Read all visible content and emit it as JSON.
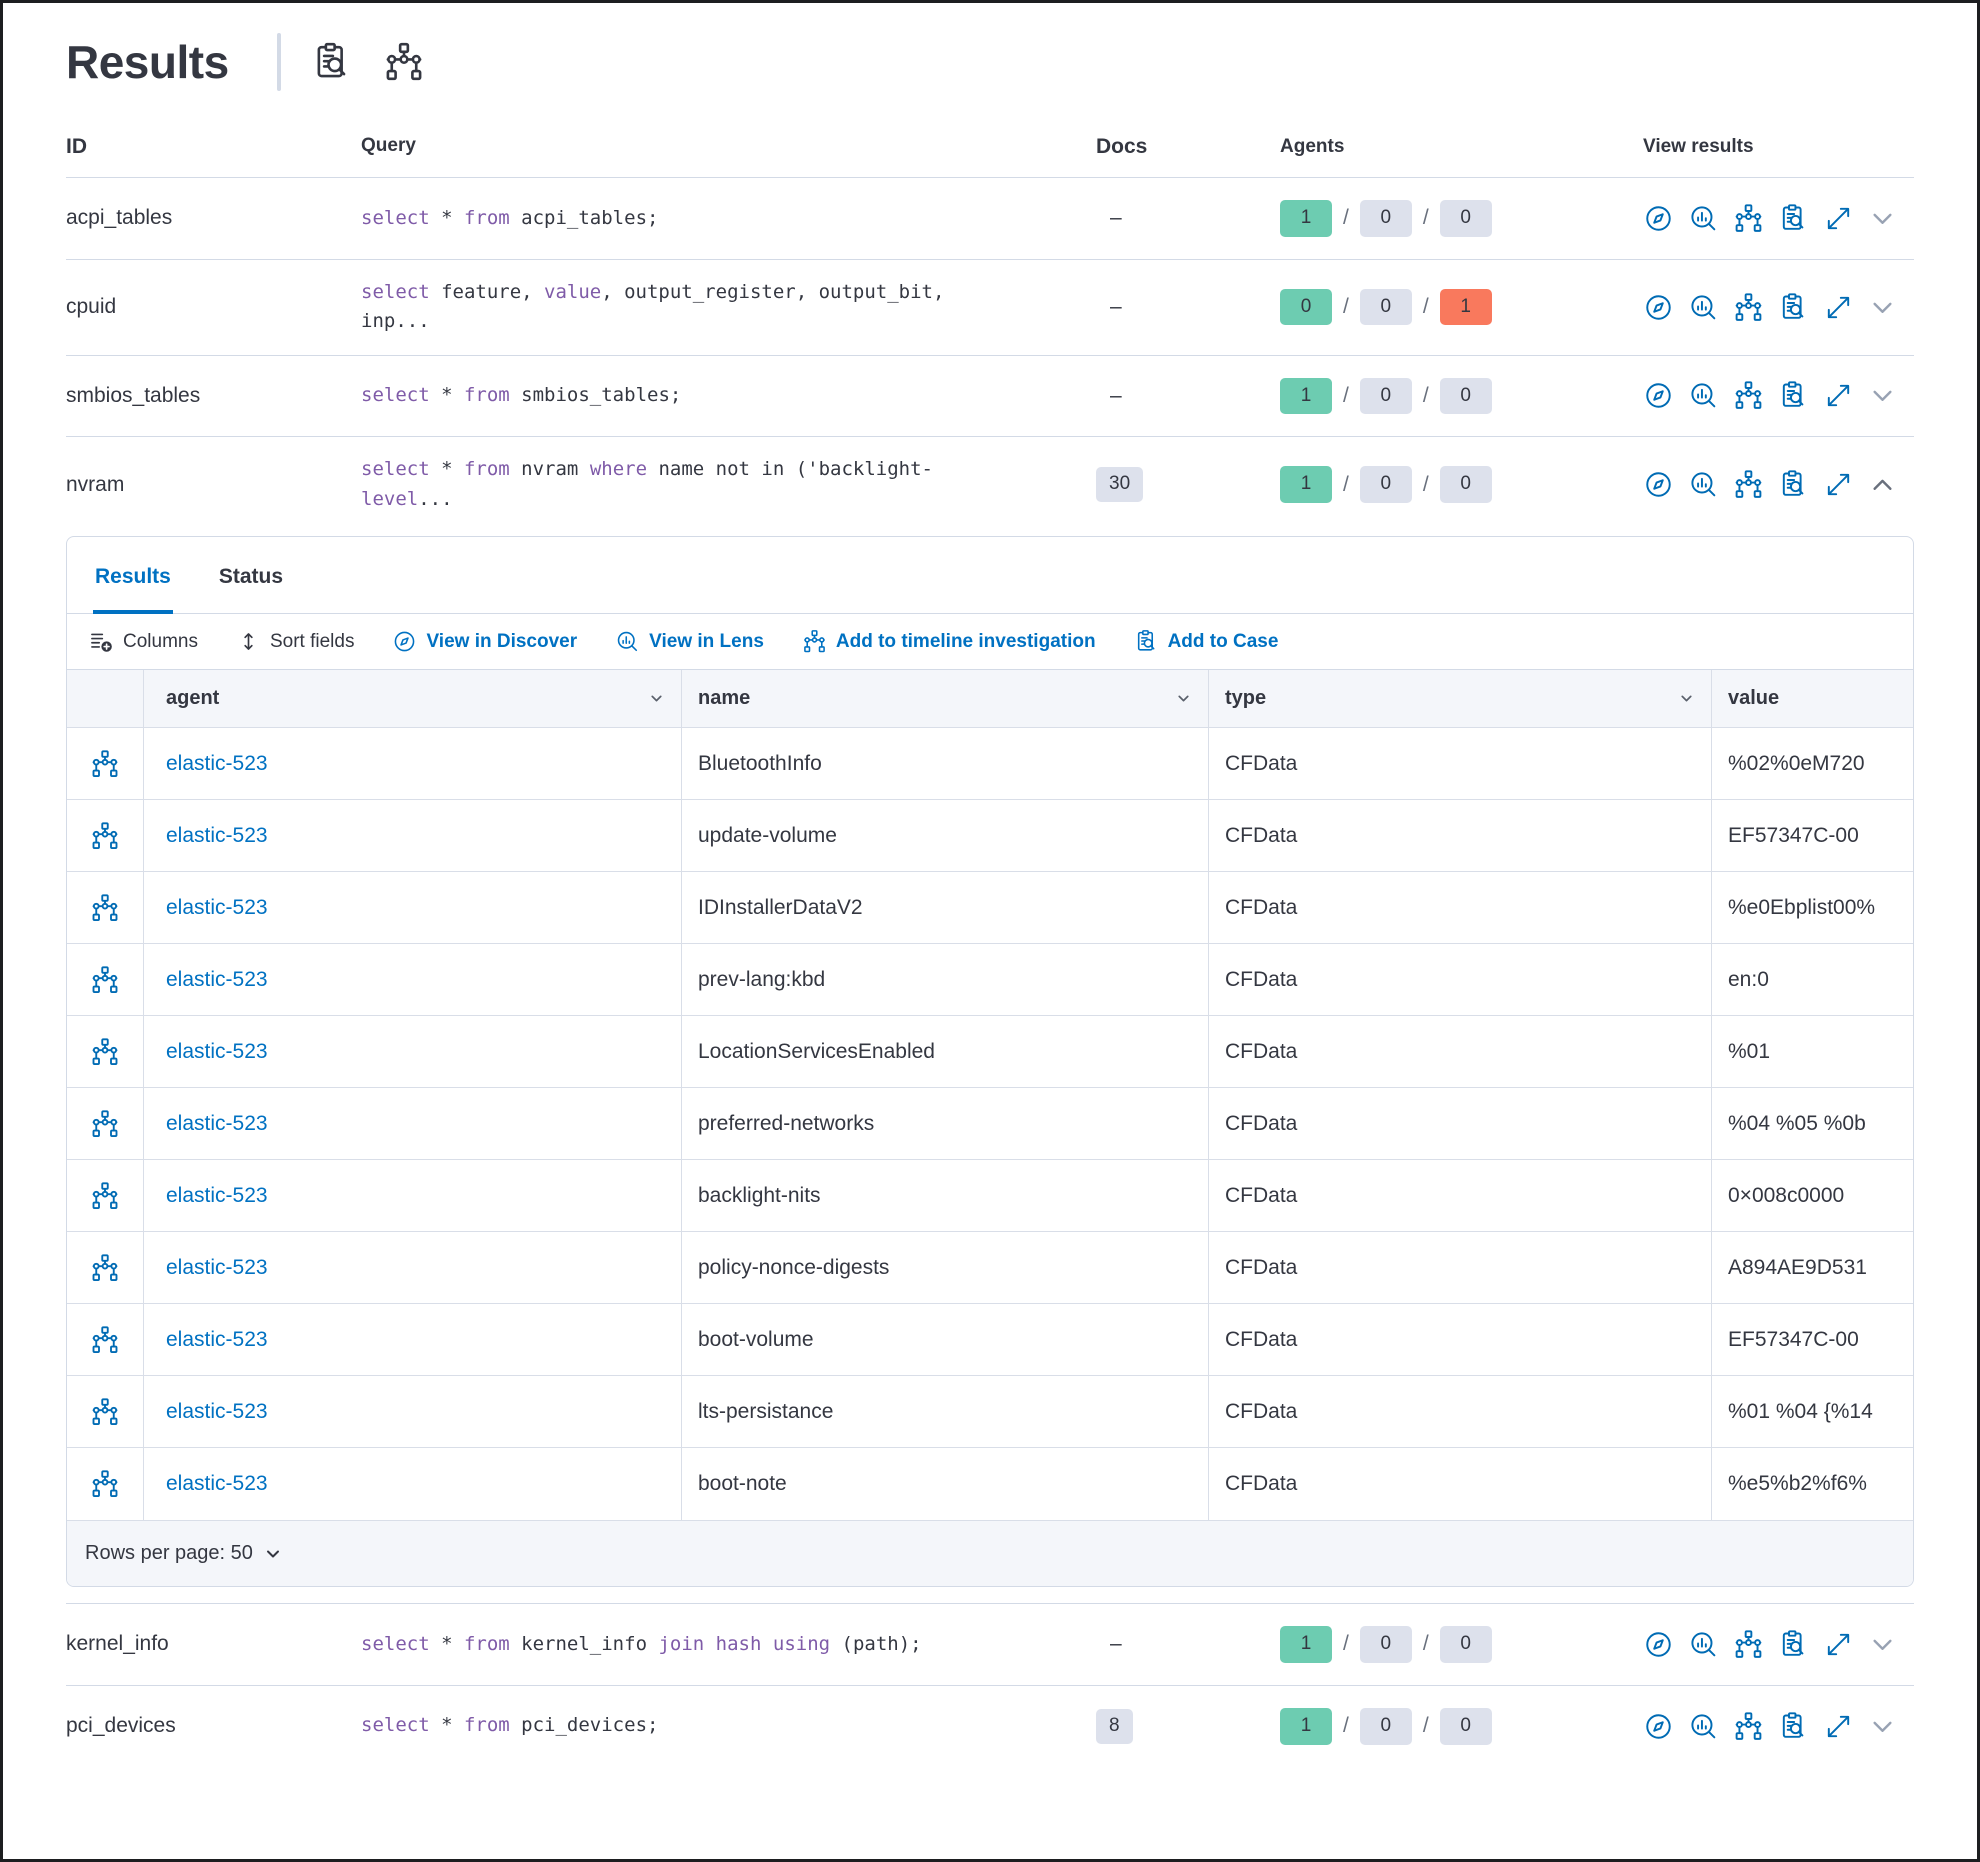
{
  "colors": {
    "primary_blue": "#0071c2",
    "icon_blue": "#006bb4",
    "keyword_purple": "#7f5ba8",
    "badge_green": "#6dccb1",
    "badge_gray": "#dde1ec",
    "badge_red": "#f9795d",
    "text": "#343741",
    "border": "#d3dae6"
  },
  "header": {
    "title": "Results"
  },
  "queries_table": {
    "columns": {
      "id": "ID",
      "query": "Query",
      "docs": "Docs",
      "agents": "Agents",
      "view_results": "View results"
    },
    "rows": [
      {
        "id": "acpi_tables",
        "docs": "–",
        "agents": {
          "ok": "1",
          "pending": "0",
          "failed": "0"
        },
        "query": [
          {
            "t": "select",
            "k": 1
          },
          {
            "t": " * ",
            "k": 0
          },
          {
            "t": "from",
            "k": 1
          },
          {
            "t": " acpi_tables;",
            "k": 0
          }
        ]
      },
      {
        "id": "cpuid",
        "docs": "–",
        "agents": {
          "ok": "0",
          "pending": "0",
          "failed": "1"
        },
        "query": [
          {
            "t": "select",
            "k": 1
          },
          {
            "t": " feature, ",
            "k": 0
          },
          {
            "t": "value",
            "k": 1
          },
          {
            "t": ", output_register, output_bit, inp...",
            "k": 0
          }
        ]
      },
      {
        "id": "smbios_tables",
        "docs": "–",
        "agents": {
          "ok": "1",
          "pending": "0",
          "failed": "0"
        },
        "query": [
          {
            "t": "select",
            "k": 1
          },
          {
            "t": " * ",
            "k": 0
          },
          {
            "t": "from",
            "k": 1
          },
          {
            "t": " smbios_tables;",
            "k": 0
          }
        ]
      },
      {
        "id": "nvram",
        "docs": "30",
        "agents": {
          "ok": "1",
          "pending": "0",
          "failed": "0"
        },
        "query": [
          {
            "t": "select",
            "k": 1
          },
          {
            "t": " * ",
            "k": 0
          },
          {
            "t": "from",
            "k": 1
          },
          {
            "t": " nvram ",
            "k": 0
          },
          {
            "t": "where",
            "k": 1
          },
          {
            "t": " name not in ('backlight-",
            "k": 0
          },
          {
            "t": "level",
            "k": 1
          },
          {
            "t": "...",
            "k": 0
          }
        ]
      },
      {
        "id": "kernel_info",
        "docs": "–",
        "agents": {
          "ok": "1",
          "pending": "0",
          "failed": "0"
        },
        "query": [
          {
            "t": "select",
            "k": 1
          },
          {
            "t": " * ",
            "k": 0
          },
          {
            "t": "from",
            "k": 1
          },
          {
            "t": " kernel_info ",
            "k": 0
          },
          {
            "t": "join",
            "k": 1
          },
          {
            "t": " ",
            "k": 0
          },
          {
            "t": "hash",
            "k": 1
          },
          {
            "t": " ",
            "k": 0
          },
          {
            "t": "using",
            "k": 1
          },
          {
            "t": " (path);",
            "k": 0
          }
        ]
      },
      {
        "id": "pci_devices",
        "docs": "8",
        "agents": {
          "ok": "1",
          "pending": "0",
          "failed": "0"
        },
        "query": [
          {
            "t": "select",
            "k": 1
          },
          {
            "t": " * ",
            "k": 0
          },
          {
            "t": "from",
            "k": 1
          },
          {
            "t": " pci_devices;",
            "k": 0
          }
        ]
      }
    ]
  },
  "results_panel": {
    "tabs": [
      {
        "label": "Results"
      },
      {
        "label": "Status"
      }
    ],
    "toolbar": {
      "columns": "Columns",
      "sort_fields": "Sort fields",
      "view_in_discover": "View in Discover",
      "view_in_lens": "View in Lens",
      "add_to_timeline": "Add to timeline investigation",
      "add_to_case": "Add to Case"
    },
    "grid": {
      "columns": {
        "agent": "agent",
        "name": "name",
        "type": "type",
        "value": "value"
      },
      "rows": [
        {
          "agent": "elastic-523",
          "name": "BluetoothInfo",
          "type": "CFData",
          "value": "%02%0eM720"
        },
        {
          "agent": "elastic-523",
          "name": "update-volume",
          "type": "CFData",
          "value": "EF57347C-00"
        },
        {
          "agent": "elastic-523",
          "name": "IDInstallerDataV2",
          "type": "CFData",
          "value": "%e0Ebplist00%"
        },
        {
          "agent": "elastic-523",
          "name": "prev-lang:kbd",
          "type": "CFData",
          "value": "en:0"
        },
        {
          "agent": "elastic-523",
          "name": "LocationServicesEnabled",
          "type": "CFData",
          "value": "%01"
        },
        {
          "agent": "elastic-523",
          "name": "preferred-networks",
          "type": "CFData",
          "value": "%04 %05 %0b"
        },
        {
          "agent": "elastic-523",
          "name": "backlight-nits",
          "type": "CFData",
          "value": "0×008c0000"
        },
        {
          "agent": "elastic-523",
          "name": "policy-nonce-digests",
          "type": "CFData",
          "value": "A894AE9D531"
        },
        {
          "agent": "elastic-523",
          "name": "boot-volume",
          "type": "CFData",
          "value": "EF57347C-00"
        },
        {
          "agent": "elastic-523",
          "name": "lts-persistance",
          "type": "CFData",
          "value": "%01 %04 {%14"
        },
        {
          "agent": "elastic-523",
          "name": "boot-note",
          "type": "CFData",
          "value": "%e5%b2%f6%"
        }
      ]
    },
    "footer": {
      "rows_per_page": "Rows per page: 50"
    }
  }
}
